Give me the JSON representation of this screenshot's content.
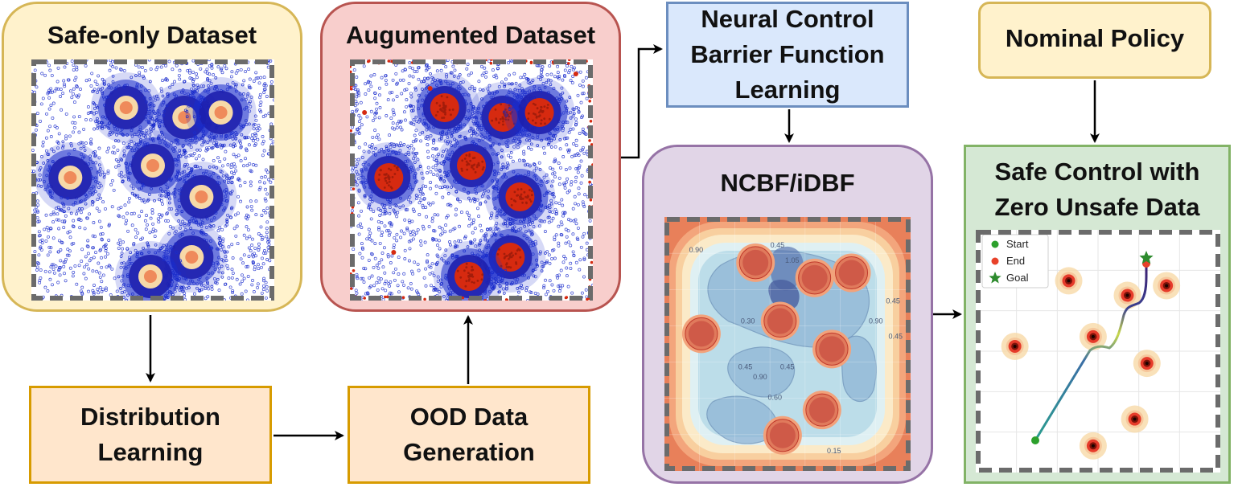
{
  "boxes": {
    "safe_only_dataset": {
      "title": "Safe-only Dataset",
      "fill": "#fff2cc",
      "stroke": "#d6b656"
    },
    "augmented_dataset": {
      "title": "Augumented Dataset",
      "fill": "#f8cecc",
      "stroke": "#b85450"
    },
    "ncbf_learning": {
      "title": "Neural Control\nBarrier Function\nLearning",
      "fill": "#dae8fc",
      "stroke": "#6c8ebf"
    },
    "nominal_policy": {
      "title": "Nominal Policy",
      "fill": "#fff2cc",
      "stroke": "#d6b656"
    },
    "ncbf_idbf": {
      "title": "NCBF/iDBF",
      "fill": "#e1d5e7",
      "stroke": "#9673a6"
    },
    "safe_control": {
      "title": "Safe Control with\nZero Unsafe Data",
      "fill": "#d5e8d4",
      "stroke": "#82b366"
    },
    "distribution_learning": {
      "title": "Distribution\nLearning",
      "fill": "#ffe6cc",
      "stroke": "#d79b00"
    },
    "ood_generation": {
      "title": "OOD Data\nGeneration",
      "fill": "#ffe6cc",
      "stroke": "#d79b00"
    }
  },
  "legend": {
    "start": "Start",
    "end": "End",
    "goal": "Goal"
  },
  "colors": {
    "safe_points": "#1a2ccc",
    "unsafe_points": "#d62a10",
    "obstacle_halo": "#f7d9a8",
    "start_marker": "#2ca02c",
    "end_marker": "#e8412a",
    "goal_marker": "#2e8b2e",
    "arrow": "#000000"
  },
  "contour_labels": [
    "0.45",
    "0.90",
    "1.05",
    "0.45",
    "0.90",
    "0.45",
    "0.45",
    "0.90",
    "0.45",
    "0.60",
    "0.30",
    "0.15"
  ]
}
